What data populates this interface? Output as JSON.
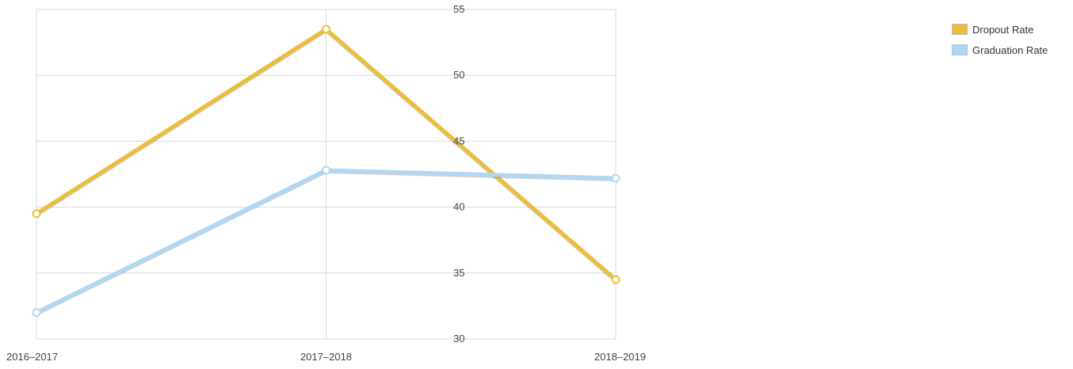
{
  "colors": {
    "dropout": "#EBBD3B",
    "graduation": "#AED6F5",
    "grid": "#D9D9D9",
    "axis_text": "#444444"
  },
  "chart_data": {
    "type": "line",
    "title": "",
    "xlabel": "",
    "ylabel": "",
    "categories": [
      "2016–2017",
      "2017–2018",
      "2018–2019"
    ],
    "ylim": [
      30,
      55
    ],
    "yticks": [
      "30",
      "35",
      "40",
      "45",
      "50",
      "55"
    ],
    "grid": true,
    "legend_position": "top-right",
    "series": [
      {
        "name": "Dropout Rate",
        "values": [
          39.5,
          53.5,
          34.5
        ]
      },
      {
        "name": "Graduation Rate",
        "values": [
          32.0,
          42.8,
          42.2
        ]
      }
    ]
  }
}
